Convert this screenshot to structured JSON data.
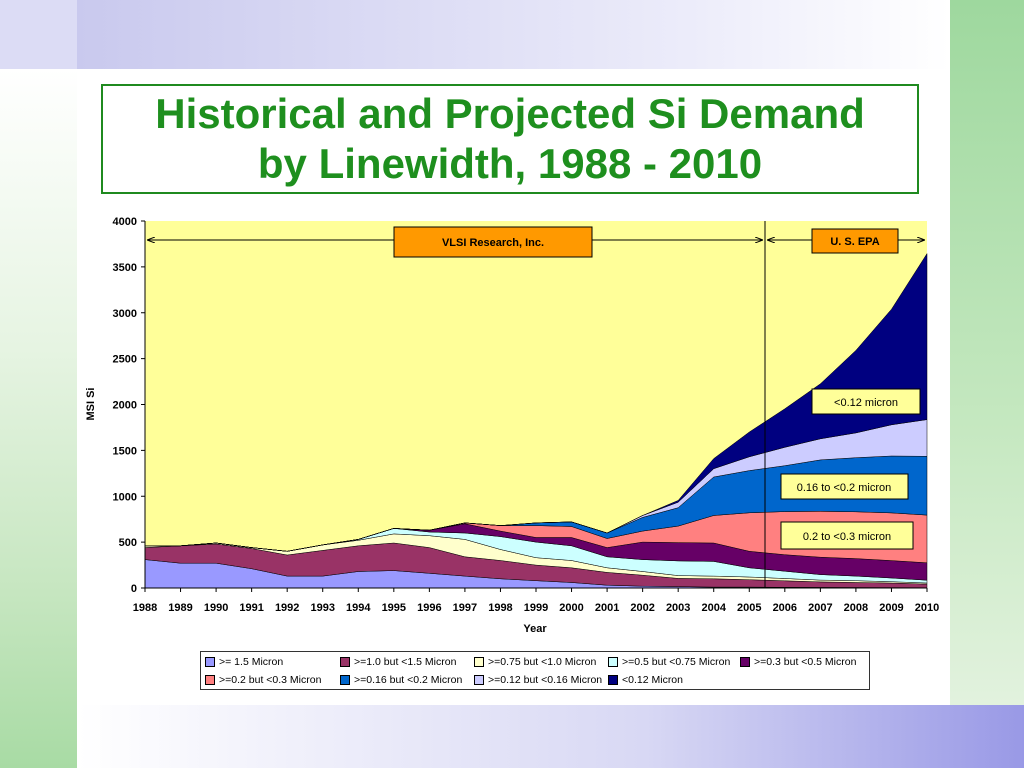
{
  "slide": {
    "title_line1": "Historical and Projected Si Demand",
    "title_line2": "by Linewidth, 1988 - 2010"
  },
  "chart_data": {
    "type": "area",
    "stacked": true,
    "xlabel": "Year",
    "ylabel": "MSI Si",
    "ylim": [
      0,
      4000
    ],
    "yticks": [
      0,
      500,
      1000,
      1500,
      2000,
      2500,
      3000,
      3500,
      4000
    ],
    "x": [
      "1988",
      "1989",
      "1990",
      "1991",
      "1992",
      "1993",
      "1994",
      "1995",
      "1996",
      "1997",
      "1998",
      "1999",
      "2000",
      "2001",
      "2002",
      "2003",
      "2004",
      "2005",
      "2006",
      "2007",
      "2008",
      "2009",
      "2010"
    ],
    "background": "#ffff99",
    "grid": false,
    "legend_position": "bottom",
    "series": [
      {
        "name": ">= 1.5 Micron",
        "color": "#9999ff",
        "values": [
          310,
          270,
          270,
          210,
          130,
          130,
          180,
          190,
          160,
          130,
          100,
          80,
          60,
          30,
          20,
          15,
          10,
          10,
          8,
          6,
          5,
          4,
          3
        ]
      },
      {
        "name": ">=1.0 but <1.5 Micron",
        "color": "#993366",
        "values": [
          130,
          190,
          210,
          220,
          230,
          280,
          280,
          300,
          280,
          210,
          200,
          170,
          160,
          140,
          120,
          90,
          90,
          80,
          70,
          60,
          55,
          50,
          40
        ]
      },
      {
        "name": ">=0.75 but <1.0 Micron",
        "color": "#ffffcc",
        "values": [
          20,
          0,
          10,
          10,
          40,
          60,
          60,
          100,
          130,
          190,
          120,
          80,
          80,
          50,
          40,
          30,
          30,
          30,
          25,
          20,
          20,
          15,
          12
        ]
      },
      {
        "name": ">=0.5 but <0.75 Micron",
        "color": "#ccffff",
        "values": [
          0,
          0,
          0,
          0,
          0,
          0,
          10,
          60,
          40,
          70,
          140,
          170,
          160,
          120,
          130,
          160,
          160,
          100,
          80,
          60,
          50,
          40,
          30
        ]
      },
      {
        "name": ">=0.3 but <0.5 Micron",
        "color": "#660066",
        "values": [
          0,
          0,
          0,
          0,
          0,
          0,
          0,
          0,
          20,
          100,
          60,
          50,
          90,
          100,
          190,
          200,
          200,
          180,
          180,
          190,
          190,
          190,
          190
        ]
      },
      {
        "name": ">=0.2 but <0.3 Micron",
        "color": "#ff8080",
        "values": [
          0,
          0,
          0,
          0,
          0,
          0,
          0,
          0,
          0,
          10,
          60,
          130,
          120,
          100,
          120,
          180,
          300,
          420,
          470,
          500,
          510,
          520,
          520
        ]
      },
      {
        "name": ">=0.16 but <0.2 Micron",
        "color": "#0066cc",
        "values": [
          0,
          0,
          0,
          0,
          0,
          0,
          0,
          0,
          0,
          0,
          0,
          30,
          50,
          60,
          150,
          200,
          420,
          460,
          500,
          560,
          590,
          620,
          640
        ]
      },
      {
        "name": ">=0.12 but <0.16 Micron",
        "color": "#ccccff",
        "values": [
          0,
          0,
          0,
          0,
          0,
          0,
          0,
          0,
          0,
          0,
          0,
          0,
          0,
          0,
          20,
          60,
          90,
          150,
          200,
          230,
          270,
          340,
          400
        ]
      },
      {
        "name": "<0.12 Micron",
        "color": "#000080",
        "values": [
          0,
          0,
          0,
          0,
          0,
          0,
          0,
          0,
          0,
          0,
          0,
          0,
          0,
          0,
          0,
          20,
          110,
          270,
          420,
          600,
          900,
          1260,
          1810
        ]
      }
    ],
    "annotations": {
      "source_left": "VLSI Research, Inc.",
      "source_right": "U. S. EPA",
      "label_a": "<0.12 micron",
      "label_b": "0.16 to <0.2 micron",
      "label_c": "0.2 to <0.3 micron"
    }
  }
}
